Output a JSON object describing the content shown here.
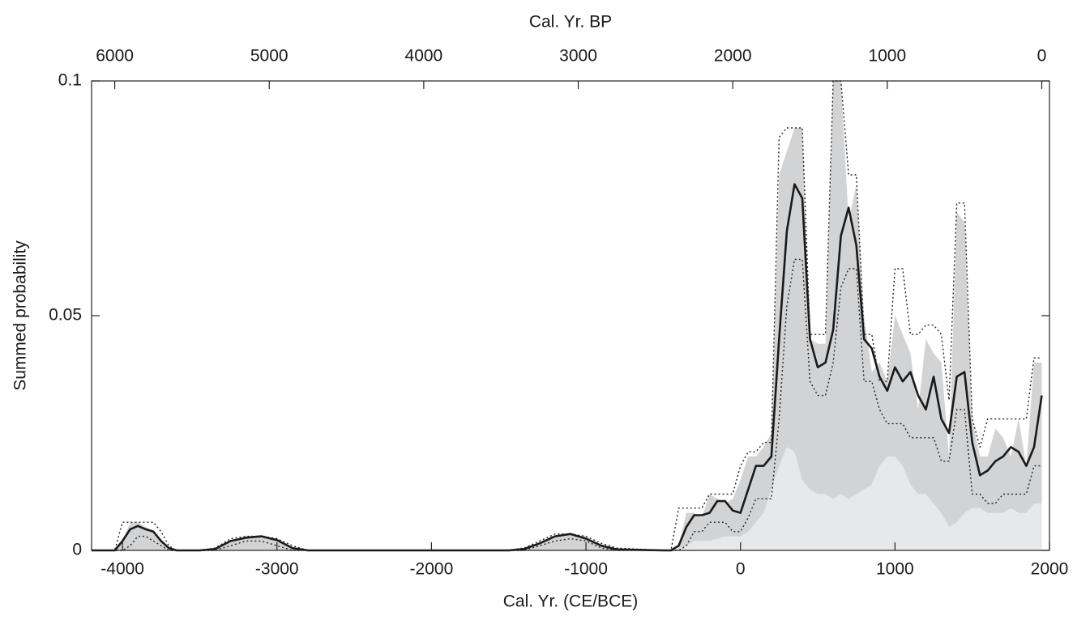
{
  "chart_data": {
    "type": "line",
    "xlabel": "Cal. Yr. (CE/BCE)",
    "ylabel": "Summed probability",
    "x2label": "Cal. Yr. BP",
    "xlim": [
      -4200,
      2000
    ],
    "xticks": [
      -4000,
      -3000,
      -2000,
      -1000,
      0,
      1000,
      2000
    ],
    "x2lim": [
      6150,
      -50
    ],
    "x2ticks": [
      6000,
      5000,
      4000,
      3000,
      2000,
      1000,
      0
    ],
    "ylim": [
      0,
      0.1
    ],
    "yticks": [
      0,
      0.05,
      0.1
    ],
    "x": [
      -4200,
      -4050,
      -4000,
      -3950,
      -3900,
      -3850,
      -3800,
      -3750,
      -3700,
      -3650,
      -3500,
      -3400,
      -3300,
      -3200,
      -3100,
      -3000,
      -2900,
      -2800,
      -2500,
      -1500,
      -1400,
      -1300,
      -1200,
      -1100,
      -1000,
      -900,
      -800,
      -500,
      -450,
      -400,
      -350,
      -300,
      -250,
      -200,
      -150,
      -100,
      -50,
      0,
      50,
      100,
      150,
      200,
      250,
      300,
      350,
      400,
      450,
      500,
      550,
      600,
      650,
      700,
      750,
      800,
      850,
      900,
      950,
      1000,
      1050,
      1100,
      1150,
      1200,
      1250,
      1300,
      1350,
      1400,
      1450,
      1500,
      1550,
      1600,
      1650,
      1700,
      1750,
      1800,
      1850,
      1900,
      1950
    ],
    "series": [
      {
        "kind": "area",
        "color": "#d2d3d5",
        "values": [
          0,
          0,
          0.002,
          0.006,
          0.006,
          0.005,
          0.004,
          0.002,
          0.0005,
          0,
          0,
          0.0003,
          0.002,
          0.003,
          0.003,
          0.0025,
          0.0005,
          0,
          0,
          0,
          0.0003,
          0.0015,
          0.003,
          0.0035,
          0.003,
          0.001,
          0.0002,
          0,
          0,
          0.001,
          0.008,
          0.008,
          0.007,
          0.012,
          0.011,
          0.01,
          0.011,
          0.015,
          0.02,
          0.02,
          0.022,
          0.025,
          0.08,
          0.085,
          0.09,
          0.09,
          0.045,
          0.044,
          0.044,
          0.1,
          0.1,
          0.07,
          0.078,
          0.05,
          0.038,
          0.04,
          0.036,
          0.05,
          0.046,
          0.042,
          0.03,
          0.045,
          0.042,
          0.04,
          0.02,
          0.072,
          0.07,
          0.028,
          0.02,
          0.02,
          0.026,
          0.024,
          0.02,
          0.028,
          0.018,
          0.04,
          0.04
        ]
      },
      {
        "kind": "area",
        "color": "#e7e8e9",
        "values": [
          0,
          0,
          0,
          0,
          0,
          0,
          0,
          0,
          0,
          0,
          0,
          0,
          0,
          0,
          0,
          0,
          0,
          0,
          0,
          0,
          0,
          0,
          0,
          0,
          0,
          0,
          0,
          0,
          0,
          0.0005,
          0.001,
          0.002,
          0.002,
          0.002,
          0.0025,
          0.003,
          0.003,
          0.003,
          0.004,
          0.006,
          0.008,
          0.013,
          0.018,
          0.022,
          0.021,
          0.015,
          0.013,
          0.012,
          0.012,
          0.011,
          0.012,
          0.011,
          0.012,
          0.013,
          0.014,
          0.018,
          0.02,
          0.02,
          0.018,
          0.014,
          0.012,
          0.012,
          0.01,
          0.008,
          0.005,
          0.006,
          0.008,
          0.009,
          0.009,
          0.008,
          0.008,
          0.008,
          0.009,
          0.008,
          0.008,
          0.01,
          0.01
        ]
      },
      {
        "kind": "line",
        "dashed": true,
        "color": "#222222",
        "values": [
          0,
          0,
          0.006,
          0.006,
          0.006,
          0.006,
          0.006,
          0.004,
          0.001,
          0,
          0,
          0.0005,
          0.0025,
          0.003,
          0.003,
          0.0025,
          0.001,
          0,
          0,
          0,
          0.0005,
          0.002,
          0.0035,
          0.0035,
          0.003,
          0.0015,
          0.0005,
          0,
          0,
          0.009,
          0.009,
          0.009,
          0.009,
          0.012,
          0.012,
          0.012,
          0.012,
          0.018,
          0.021,
          0.021,
          0.023,
          0.023,
          0.088,
          0.09,
          0.09,
          0.09,
          0.046,
          0.046,
          0.046,
          0.1,
          0.1,
          0.08,
          0.08,
          0.046,
          0.046,
          0.036,
          0.036,
          0.06,
          0.06,
          0.046,
          0.046,
          0.048,
          0.048,
          0.046,
          0.032,
          0.074,
          0.074,
          0.028,
          0.022,
          0.028,
          0.028,
          0.028,
          0.028,
          0.028,
          0.028,
          0.041,
          0.041
        ]
      },
      {
        "kind": "line",
        "dashed": true,
        "color": "#222222",
        "values": [
          0,
          0,
          0,
          0.001,
          0.003,
          0.003,
          0.002,
          0.001,
          0,
          0,
          0,
          0,
          0.001,
          0.002,
          0.002,
          0.001,
          0,
          0,
          0,
          0,
          0,
          0.001,
          0.002,
          0.0025,
          0.002,
          0.0005,
          0,
          0,
          0,
          0,
          0.001,
          0.004,
          0.004,
          0.006,
          0.006,
          0.006,
          0.004,
          0.004,
          0.007,
          0.011,
          0.011,
          0.011,
          0.028,
          0.052,
          0.062,
          0.062,
          0.036,
          0.033,
          0.033,
          0.04,
          0.056,
          0.06,
          0.06,
          0.036,
          0.036,
          0.03,
          0.027,
          0.027,
          0.027,
          0.024,
          0.024,
          0.024,
          0.024,
          0.019,
          0.019,
          0.03,
          0.03,
          0.012,
          0.012,
          0.01,
          0.01,
          0.012,
          0.012,
          0.012,
          0.012,
          0.018,
          0.018
        ]
      },
      {
        "kind": "line",
        "color": "#1a1a1a",
        "values": [
          0,
          0,
          0.002,
          0.0045,
          0.0052,
          0.0045,
          0.004,
          0.002,
          0.0005,
          0,
          0,
          0.0003,
          0.002,
          0.0027,
          0.003,
          0.0022,
          0.0005,
          0,
          0,
          0,
          0.0003,
          0.0015,
          0.003,
          0.0035,
          0.0025,
          0.001,
          0.0002,
          0,
          0,
          0.001,
          0.005,
          0.0075,
          0.0075,
          0.008,
          0.0105,
          0.0105,
          0.0085,
          0.008,
          0.013,
          0.018,
          0.018,
          0.02,
          0.045,
          0.068,
          0.078,
          0.075,
          0.045,
          0.039,
          0.04,
          0.047,
          0.067,
          0.073,
          0.065,
          0.045,
          0.043,
          0.037,
          0.034,
          0.039,
          0.036,
          0.038,
          0.033,
          0.03,
          0.037,
          0.028,
          0.025,
          0.037,
          0.038,
          0.023,
          0.016,
          0.017,
          0.019,
          0.02,
          0.022,
          0.021,
          0.018,
          0.022,
          0.033
        ]
      }
    ]
  }
}
